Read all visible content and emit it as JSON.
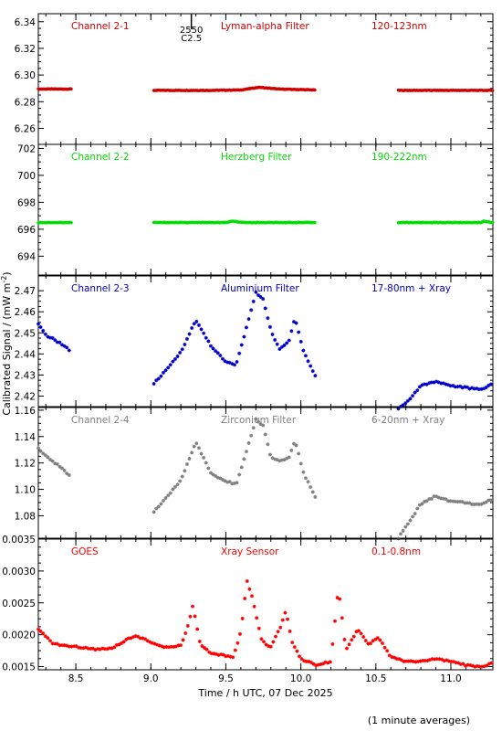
{
  "ylabel_text": "Calibrated Signal / (mW m",
  "ylabel_sup": "-2",
  "ylabel_close": ")",
  "xlabel": "Time / h UTC, 07 Dec 2025",
  "footnote": "(1 minute averages)",
  "flare_marker": {
    "time": 9.27,
    "code": "2550",
    "class": "C2.5"
  },
  "chart_data": [
    {
      "type": "scatter",
      "channel": "Channel 2-1",
      "filter": "Lyman-alpha Filter",
      "band": "120-123nm",
      "color": "#d00000",
      "xlim": [
        8.25,
        11.28
      ],
      "ylim": [
        6.248,
        6.346
      ],
      "yticks": [
        6.26,
        6.28,
        6.3,
        6.32,
        6.34
      ],
      "ytick_labels": [
        "6.26",
        "6.28",
        "6.30",
        "6.32",
        "6.34"
      ],
      "segments": [
        {
          "x": [
            8.25,
            8.47
          ],
          "y": [
            [
              8.25,
              6.2895
            ],
            [
              8.47,
              6.2895
            ]
          ]
        },
        {
          "x": [
            9.02,
            10.1
          ],
          "y": [
            [
              9.02,
              6.2885
            ],
            [
              9.4,
              6.2885
            ],
            [
              9.6,
              6.2888
            ],
            [
              9.72,
              6.2908
            ],
            [
              9.85,
              6.2895
            ],
            [
              10.1,
              6.2888
            ]
          ]
        },
        {
          "x": [
            10.65,
            11.28
          ],
          "y": [
            [
              10.65,
              6.2885
            ],
            [
              11.28,
              6.2885
            ]
          ]
        }
      ]
    },
    {
      "type": "scatter",
      "channel": "Channel 2-2",
      "filter": "Herzberg Filter",
      "band": "190-222nm",
      "color": "#00dd00",
      "xlim": [
        8.25,
        11.28
      ],
      "ylim": [
        692.6,
        702.3
      ],
      "yticks": [
        694,
        696,
        698,
        700,
        702
      ],
      "ytick_labels": [
        "694",
        "696",
        "698",
        "700",
        "702"
      ],
      "segments": [
        {
          "x": [
            8.25,
            8.47
          ],
          "y": [
            [
              8.25,
              696.5
            ],
            [
              8.47,
              696.5
            ]
          ]
        },
        {
          "x": [
            9.02,
            10.1
          ],
          "y": [
            [
              9.02,
              696.5
            ],
            [
              9.5,
              696.5
            ],
            [
              9.55,
              696.6
            ],
            [
              9.6,
              696.5
            ],
            [
              10.1,
              696.5
            ]
          ]
        },
        {
          "x": [
            10.65,
            11.28
          ],
          "y": [
            [
              10.65,
              696.5
            ],
            [
              11.2,
              696.5
            ],
            [
              11.22,
              696.6
            ],
            [
              11.28,
              696.5
            ]
          ]
        }
      ]
    },
    {
      "type": "scatter",
      "channel": "Channel 2-3",
      "filter": "Aluminium Filter",
      "band": "17-80nm + Xray",
      "color": "#0000cc",
      "xlim": [
        8.25,
        11.28
      ],
      "ylim": [
        2.415,
        2.477
      ],
      "yticks": [
        2.42,
        2.43,
        2.44,
        2.45,
        2.46,
        2.47
      ],
      "ytick_labels": [
        "2.42",
        "2.43",
        "2.44",
        "2.45",
        "2.46",
        "2.47"
      ],
      "segments": [
        {
          "x": [
            8.25,
            8.47
          ],
          "y": [
            [
              8.25,
              2.454
            ],
            [
              8.3,
              2.449
            ],
            [
              8.4,
              2.445
            ],
            [
              8.47,
              2.441
            ]
          ]
        },
        {
          "x": [
            9.02,
            10.1
          ],
          "y": [
            [
              9.02,
              2.426
            ],
            [
              9.1,
              2.432
            ],
            [
              9.2,
              2.441
            ],
            [
              9.3,
              2.456
            ],
            [
              9.4,
              2.444
            ],
            [
              9.5,
              2.436
            ],
            [
              9.57,
              2.435
            ],
            [
              9.62,
              2.448
            ],
            [
              9.7,
              2.469
            ],
            [
              9.75,
              2.466
            ],
            [
              9.8,
              2.451
            ],
            [
              9.86,
              2.442
            ],
            [
              9.92,
              2.446
            ],
            [
              9.96,
              2.457
            ],
            [
              10.02,
              2.441
            ],
            [
              10.1,
              2.429
            ]
          ]
        },
        {
          "x": [
            10.65,
            11.28
          ],
          "y": [
            [
              10.65,
              2.414
            ],
            [
              10.72,
              2.418
            ],
            [
              10.8,
              2.425
            ],
            [
              10.9,
              2.427
            ],
            [
              11.0,
              2.425
            ],
            [
              11.1,
              2.424
            ],
            [
              11.2,
              2.423
            ],
            [
              11.28,
              2.426
            ]
          ]
        }
      ]
    },
    {
      "type": "scatter",
      "channel": "Channel 2-4",
      "filter": "Zirconium Filter",
      "band": "6-20nm + Xray",
      "color": "#808080",
      "xlim": [
        8.25,
        11.28
      ],
      "ylim": [
        1.063,
        1.162
      ],
      "yticks": [
        1.08,
        1.1,
        1.12,
        1.14,
        1.16
      ],
      "ytick_labels": [
        "1.08",
        "1.10",
        "1.12",
        "1.14",
        "1.16"
      ],
      "segments": [
        {
          "x": [
            8.25,
            8.47
          ],
          "y": [
            [
              8.25,
              1.131
            ],
            [
              8.3,
              1.125
            ],
            [
              8.4,
              1.117
            ],
            [
              8.47,
              1.109
            ]
          ]
        },
        {
          "x": [
            9.02,
            10.1
          ],
          "y": [
            [
              9.02,
              1.083
            ],
            [
              9.1,
              1.093
            ],
            [
              9.2,
              1.107
            ],
            [
              9.3,
              1.136
            ],
            [
              9.4,
              1.112
            ],
            [
              9.5,
              1.106
            ],
            [
              9.57,
              1.104
            ],
            [
              9.62,
              1.122
            ],
            [
              9.7,
              1.153
            ],
            [
              9.75,
              1.148
            ],
            [
              9.8,
              1.124
            ],
            [
              9.86,
              1.121
            ],
            [
              9.92,
              1.124
            ],
            [
              9.96,
              1.137
            ],
            [
              10.02,
              1.112
            ],
            [
              10.1,
              1.093
            ]
          ]
        },
        {
          "x": [
            10.65,
            11.28
          ],
          "y": [
            [
              10.65,
              1.063
            ],
            [
              10.72,
              1.075
            ],
            [
              10.8,
              1.089
            ],
            [
              10.9,
              1.095
            ],
            [
              11.0,
              1.091
            ],
            [
              11.1,
              1.09
            ],
            [
              11.2,
              1.088
            ],
            [
              11.28,
              1.093
            ]
          ]
        }
      ]
    },
    {
      "type": "scatter",
      "channel": "GOES",
      "filter": "Xray Sensor",
      "band": "0.1-0.8nm",
      "color": "#ff0000",
      "xlim": [
        8.25,
        11.28
      ],
      "ylim": [
        0.00145,
        0.0035
      ],
      "yticks": [
        0.0015,
        0.002,
        0.0025,
        0.003,
        0.0035
      ],
      "ytick_labels": [
        "0.0015",
        "0.0020",
        "0.0025",
        "0.0030",
        "0.0035"
      ],
      "segments": [
        {
          "x": [
            8.25,
            11.28
          ],
          "y": [
            [
              8.25,
              0.00208
            ],
            [
              8.35,
              0.00186
            ],
            [
              8.45,
              0.00182
            ],
            [
              8.55,
              0.0018
            ],
            [
              8.65,
              0.00177
            ],
            [
              8.75,
              0.0018
            ],
            [
              8.85,
              0.00194
            ],
            [
              8.9,
              0.00198
            ],
            [
              8.95,
              0.00194
            ],
            [
              9.02,
              0.00185
            ],
            [
              9.1,
              0.0018
            ],
            [
              9.2,
              0.00183
            ],
            [
              9.25,
              0.00215
            ],
            [
              9.28,
              0.00245
            ],
            [
              9.33,
              0.00185
            ],
            [
              9.4,
              0.0017
            ],
            [
              9.5,
              0.00167
            ],
            [
              9.55,
              0.00165
            ],
            [
              9.6,
              0.00205
            ],
            [
              9.64,
              0.00285
            ],
            [
              9.68,
              0.00255
            ],
            [
              9.74,
              0.0019
            ],
            [
              9.8,
              0.0018
            ],
            [
              9.86,
              0.0021
            ],
            [
              9.9,
              0.00238
            ],
            [
              9.94,
              0.0019
            ],
            [
              10.0,
              0.00162
            ],
            [
              10.1,
              0.00153
            ],
            [
              10.2,
              0.00158
            ],
            [
              10.25,
              0.00275
            ],
            [
              10.3,
              0.00175
            ],
            [
              10.38,
              0.00208
            ],
            [
              10.45,
              0.00185
            ],
            [
              10.52,
              0.00195
            ],
            [
              10.6,
              0.00165
            ],
            [
              10.7,
              0.00158
            ],
            [
              10.8,
              0.00158
            ],
            [
              10.9,
              0.00162
            ],
            [
              11.0,
              0.00158
            ],
            [
              11.1,
              0.00152
            ],
            [
              11.2,
              0.0015
            ],
            [
              11.28,
              0.00155
            ]
          ]
        }
      ]
    }
  ],
  "x_axis": {
    "ticks": [
      8.5,
      9.0,
      9.5,
      10.0,
      10.5,
      11.0
    ],
    "tick_labels": [
      "8.5",
      "9.0",
      "9.5",
      "10.0",
      "10.5",
      "11.0"
    ]
  }
}
